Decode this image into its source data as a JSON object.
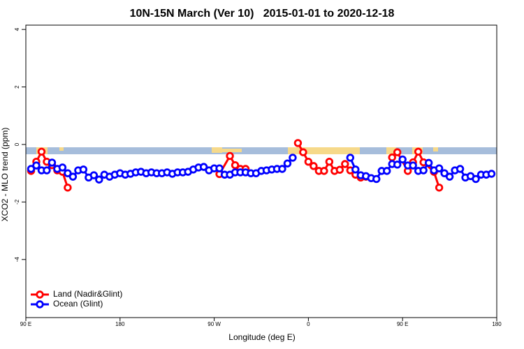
{
  "chart_data": {
    "type": "line",
    "title": "10N-15N March (Ver 10)   2015-01-01 to 2020-12-18",
    "xlabel": "Longitude (deg E)",
    "ylabel": "XCO2 - MLO trend (ppm)",
    "xlim": [
      90,
      540
    ],
    "ylim": [
      -6.02,
      4.15
    ],
    "xticks": [
      {
        "value": 90,
        "label": "90 E"
      },
      180,
      {
        "value": 270,
        "label": "90 W"
      },
      {
        "value": 360,
        "label": "0"
      },
      {
        "value": 450,
        "label": "90 E"
      },
      {
        "value": 540,
        "label": "180"
      }
    ],
    "yticks": [
      4,
      2,
      0,
      -2,
      -4
    ],
    "legend": "bottom-left",
    "series": [
      {
        "name": "Land (Nadir&Glint)",
        "color": "#ff0000",
        "x": [
          95,
          100,
          105,
          110,
          115,
          120,
          125,
          130,
          200,
          275,
          285,
          290,
          295,
          300,
          325,
          350,
          355,
          360,
          365,
          370,
          375,
          380,
          385,
          390,
          395,
          400,
          405,
          410,
          415,
          428,
          440,
          445,
          455,
          460,
          465,
          470,
          480,
          485
        ],
        "values": [
          -0.92,
          -0.6,
          -0.25,
          -0.6,
          -0.72,
          -0.9,
          -0.95,
          -1.5,
          null,
          -1.03,
          -0.4,
          -0.72,
          -0.85,
          -0.85,
          null,
          0.05,
          -0.27,
          -0.6,
          -0.75,
          -0.92,
          -0.92,
          -0.6,
          -0.92,
          -0.88,
          -0.68,
          -0.9,
          -1.05,
          -1.15,
          -1.12,
          null,
          -0.45,
          -0.27,
          -0.92,
          -0.62,
          -0.25,
          -0.62,
          -0.95,
          -1.5
        ]
      },
      {
        "name": "Ocean (Glint)",
        "color": "#0000ff",
        "x": [
          95,
          100,
          105,
          110,
          115,
          120,
          125,
          130,
          135,
          140,
          145,
          150,
          155,
          160,
          165,
          170,
          175,
          180,
          185,
          190,
          195,
          200,
          205,
          210,
          215,
          220,
          225,
          230,
          235,
          240,
          245,
          250,
          255,
          260,
          265,
          270,
          275,
          280,
          285,
          290,
          295,
          300,
          305,
          310,
          315,
          320,
          325,
          330,
          335,
          340,
          345,
          370,
          400,
          405,
          410,
          415,
          420,
          425,
          430,
          435,
          440,
          445,
          450,
          455,
          460,
          465,
          470,
          475,
          480,
          485,
          490,
          495,
          500,
          505,
          510,
          515,
          520,
          525,
          530,
          535
        ],
        "values": [
          -0.85,
          -0.73,
          -0.9,
          -0.9,
          -0.63,
          -0.85,
          -0.8,
          -1.0,
          -1.12,
          -0.9,
          -0.87,
          -1.15,
          -1.07,
          -1.22,
          -1.05,
          -1.12,
          -1.05,
          -1.0,
          -1.05,
          -1.02,
          -0.97,
          -0.95,
          -1.0,
          -0.97,
          -1.0,
          -1.0,
          -0.97,
          -1.02,
          -0.97,
          -0.97,
          -0.95,
          -0.87,
          -0.8,
          -0.78,
          -0.9,
          -0.83,
          -0.83,
          -1.05,
          -1.05,
          -0.97,
          -0.97,
          -0.97,
          -1.0,
          -1.0,
          -0.92,
          -0.9,
          -0.87,
          -0.85,
          -0.85,
          -0.66,
          -0.46,
          null,
          -0.46,
          -0.87,
          -1.07,
          -1.1,
          -1.17,
          -1.2,
          -0.92,
          -0.92,
          -0.68,
          -0.7,
          -0.52,
          -0.73,
          -0.73,
          -0.92,
          -0.9,
          -0.64,
          -0.9,
          -0.83,
          -1.0,
          -1.12,
          -0.9,
          -0.85,
          -1.15,
          -1.1,
          -1.2,
          -1.05,
          -1.05,
          -1.02
        ]
      }
    ]
  }
}
